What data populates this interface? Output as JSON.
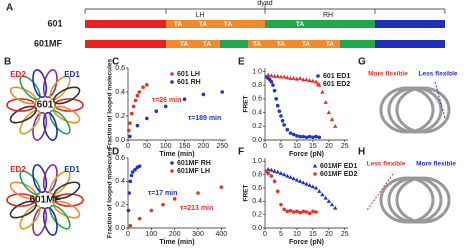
{
  "panel_a": {
    "label": "A",
    "dyad": "dyad",
    "left": "LH",
    "right": "RH",
    "rows": [
      {
        "name": "601",
        "ta": [
          "TA",
          "TA",
          "TA",
          "TA"
        ]
      },
      {
        "name": "601MF",
        "ta": [
          "TA",
          "TA",
          "TA",
          "TA",
          "TA",
          "TA"
        ]
      }
    ]
  },
  "panel_b": {
    "label": "B",
    "models": [
      {
        "name": "601",
        "ed1": "ED1",
        "ed2": "ED2"
      },
      {
        "name": "601MF",
        "ed1": "ED1",
        "ed2": "ED2"
      }
    ]
  },
  "panel_g": {
    "label": "G",
    "left": "More flexible",
    "right": "Less flexible"
  },
  "panel_h": {
    "label": "H",
    "left": "Less flexible",
    "right": "More flexible"
  },
  "chart_data": [
    {
      "type": "scatter",
      "label": "C",
      "xlabel": "Time (min)",
      "ylabel": "Fraction of looped molecules",
      "xlim": [
        0,
        260
      ],
      "ylim": [
        0,
        0.6
      ],
      "xticks": [
        0,
        50,
        100,
        150,
        200,
        250
      ],
      "yticks": [
        {
          "value": 0,
          "label": "0.0"
        },
        0.2,
        0.4,
        0.6
      ],
      "series": [
        {
          "name": "601 LH",
          "color": "#e8302a",
          "marker": "circle",
          "x": [
            2,
            5,
            10,
            15,
            20,
            25,
            30,
            40,
            50
          ],
          "values": [
            0.08,
            0.14,
            0.22,
            0.28,
            0.33,
            0.37,
            0.4,
            0.44,
            0.46
          ]
        },
        {
          "name": "601 RH",
          "color": "#2233cc",
          "marker": "circle",
          "x": [
            5,
            25,
            50,
            75,
            100,
            150,
            200,
            250
          ],
          "values": [
            0.03,
            0.12,
            0.18,
            0.24,
            0.28,
            0.34,
            0.38,
            0.4
          ]
        }
      ],
      "annotations": [
        {
          "text": "τ=26 min",
          "color": "#e8302a"
        },
        {
          "text": "τ=189 min",
          "color": "#2233cc"
        }
      ]
    },
    {
      "type": "scatter",
      "label": "D",
      "xlabel": "Time (min)",
      "ylabel": "Fraction of looped molecules",
      "xlim": [
        0,
        420
      ],
      "ylim": [
        0,
        0.6
      ],
      "xticks": [
        0,
        100,
        200,
        300,
        400
      ],
      "yticks": [
        {
          "value": 0,
          "label": "0.0"
        },
        0.2,
        0.4,
        0.6
      ],
      "series": [
        {
          "name": "601MF RH",
          "color": "#2233cc",
          "marker": "circle",
          "x": [
            2,
            5,
            10,
            15,
            20,
            30,
            40,
            50
          ],
          "values": [
            0.15,
            0.3,
            0.4,
            0.45,
            0.48,
            0.5,
            0.52,
            0.53
          ]
        },
        {
          "name": "601MF LH",
          "color": "#e8302a",
          "marker": "circle",
          "x": [
            10,
            50,
            100,
            150,
            200,
            300,
            400
          ],
          "values": [
            0.02,
            0.08,
            0.15,
            0.2,
            0.25,
            0.3,
            0.35
          ]
        }
      ],
      "annotations": [
        {
          "text": "τ=17 min",
          "color": "#2233cc"
        },
        {
          "text": "τ=213 min",
          "color": "#e8302a"
        }
      ]
    },
    {
      "type": "scatter",
      "label": "E",
      "xlabel": "Force (pN)",
      "ylabel": "FRET",
      "xlim": [
        0,
        26
      ],
      "ylim": [
        0,
        1.05
      ],
      "xticks": [
        0,
        5,
        10,
        15,
        20,
        25
      ],
      "yticks": [
        {
          "value": 0,
          "label": "0.0"
        },
        0.2,
        0.4,
        0.6,
        0.8,
        {
          "value": 1,
          "label": "1.0"
        }
      ],
      "series": [
        {
          "name": "601 ED1",
          "color": "#2233cc",
          "marker": "circle",
          "x": [
            0.5,
            1,
            1.5,
            2,
            2.5,
            3,
            3.5,
            4,
            4.5,
            5,
            5.5,
            6,
            7,
            8,
            9,
            10,
            11,
            12,
            13,
            14,
            15,
            16,
            17
          ],
          "values": [
            0.92,
            0.9,
            0.88,
            0.85,
            0.8,
            0.72,
            0.6,
            0.5,
            0.42,
            0.35,
            0.28,
            0.22,
            0.15,
            0.1,
            0.08,
            0.06,
            0.05,
            0.05,
            0.04,
            0.05,
            0.04,
            0.05,
            0.04
          ]
        },
        {
          "name": "601 ED2",
          "color": "#e8302a",
          "marker": "triangle",
          "x": [
            1,
            2,
            3,
            4,
            5,
            6,
            7,
            8,
            9,
            10,
            11,
            12,
            13,
            14,
            15,
            16,
            17,
            18,
            19,
            20,
            21,
            22
          ],
          "values": [
            0.95,
            0.94,
            0.93,
            0.93,
            0.92,
            0.92,
            0.91,
            0.9,
            0.9,
            0.89,
            0.9,
            0.88,
            0.88,
            0.87,
            0.86,
            0.85,
            0.8,
            0.7,
            0.55,
            0.4,
            0.3,
            0.2
          ]
        }
      ]
    },
    {
      "type": "scatter",
      "label": "F",
      "xlabel": "Force (pN)",
      "ylabel": "FRET",
      "xlim": [
        0,
        26
      ],
      "ylim": [
        0,
        1.05
      ],
      "xticks": [
        0,
        5,
        10,
        15,
        20,
        25
      ],
      "yticks": [
        {
          "value": 0,
          "label": "0.0"
        },
        0.2,
        0.4,
        0.6,
        0.8,
        {
          "value": 1,
          "label": "1.0"
        }
      ],
      "series": [
        {
          "name": "601MF ED1",
          "color": "#2233cc",
          "marker": "triangle",
          "x": [
            1,
            2,
            3,
            4,
            5,
            6,
            7,
            8,
            9,
            10,
            11,
            12,
            13,
            14,
            15,
            16,
            17,
            18,
            19,
            20,
            21,
            22
          ],
          "values": [
            0.88,
            0.87,
            0.85,
            0.84,
            0.82,
            0.8,
            0.78,
            0.76,
            0.74,
            0.72,
            0.7,
            0.68,
            0.66,
            0.64,
            0.62,
            0.6,
            0.55,
            0.5,
            0.45,
            0.4,
            0.35,
            0.3
          ]
        },
        {
          "name": "601MF ED2",
          "color": "#e8302a",
          "marker": "circle",
          "x": [
            0.5,
            1,
            2,
            3,
            4,
            5,
            6,
            7,
            8,
            9,
            10,
            11,
            12,
            13,
            14,
            15,
            16
          ],
          "values": [
            0.85,
            0.82,
            0.78,
            0.7,
            0.55,
            0.35,
            0.28,
            0.25,
            0.26,
            0.24,
            0.25,
            0.23,
            0.25,
            0.24,
            0.22,
            0.25,
            0.24
          ]
        }
      ]
    }
  ]
}
